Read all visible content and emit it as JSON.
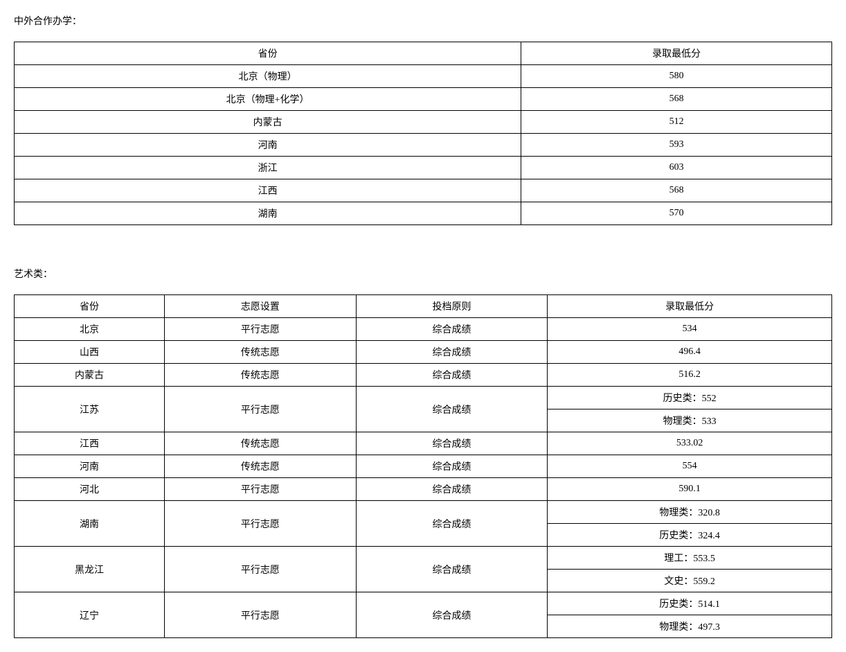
{
  "section1": {
    "title": "中外合作办学：",
    "columns": [
      "省份",
      "录取最低分"
    ],
    "rows": [
      [
        "北京（物理）",
        "580"
      ],
      [
        "北京（物理+化学）",
        "568"
      ],
      [
        "内蒙古",
        "512"
      ],
      [
        "河南",
        "593"
      ],
      [
        "浙江",
        "603"
      ],
      [
        "江西",
        "568"
      ],
      [
        "湖南",
        "570"
      ]
    ]
  },
  "section2": {
    "title": "艺术类：",
    "columns": [
      "省份",
      "志愿设置",
      "投档原则",
      "录取最低分"
    ],
    "rows": [
      {
        "province": "北京",
        "pref": "平行志愿",
        "rule": "综合成绩",
        "scores": [
          "534"
        ]
      },
      {
        "province": "山西",
        "pref": "传统志愿",
        "rule": "综合成绩",
        "scores": [
          "496.4"
        ]
      },
      {
        "province": "内蒙古",
        "pref": "传统志愿",
        "rule": "综合成绩",
        "scores": [
          "516.2"
        ]
      },
      {
        "province": "江苏",
        "pref": "平行志愿",
        "rule": "综合成绩",
        "scores": [
          "历史类：552",
          "物理类：533"
        ]
      },
      {
        "province": "江西",
        "pref": "传统志愿",
        "rule": "综合成绩",
        "scores": [
          "533.02"
        ]
      },
      {
        "province": "河南",
        "pref": "传统志愿",
        "rule": "综合成绩",
        "scores": [
          "554"
        ]
      },
      {
        "province": "河北",
        "pref": "平行志愿",
        "rule": "综合成绩",
        "scores": [
          "590.1"
        ]
      },
      {
        "province": "湖南",
        "pref": "平行志愿",
        "rule": "综合成绩",
        "scores": [
          "物理类：320.8",
          "历史类：324.4"
        ]
      },
      {
        "province": "黑龙江",
        "pref": "平行志愿",
        "rule": "综合成绩",
        "scores": [
          "理工：553.5",
          "文史：559.2"
        ]
      },
      {
        "province": "辽宁",
        "pref": "平行志愿",
        "rule": "综合成绩",
        "scores": [
          "历史类：514.1",
          "物理类：497.3"
        ]
      }
    ]
  }
}
